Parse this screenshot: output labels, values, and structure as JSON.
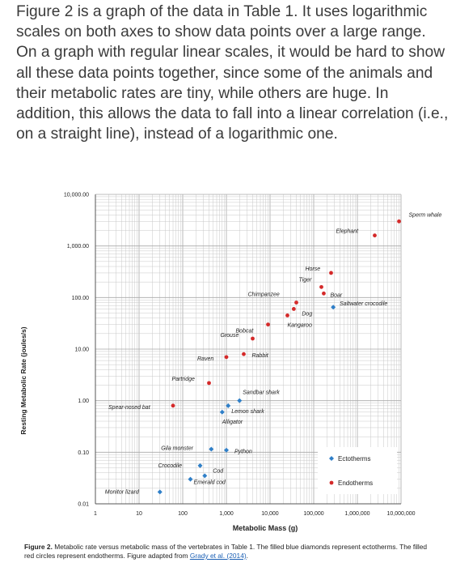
{
  "intro_text": "Figure 2 is a graph of the data in Table 1. It uses logarithmic scales on both axes to show data points over a large range. On a graph with regular linear scales, it would be hard to show all these data points together, since some of the animals and their metabolic rates are tiny, while others are huge. In addition, this allows the data to fall into a linear correlation (i.e., on a straight line), instead of a logarithmic one.",
  "caption": {
    "label": "Figure 2.",
    "text": " Metabolic rate versus metabolic mass of the vertebrates in Table 1. The filled blue diamonds represent ectotherms. The filled red circles represent endotherms. Figure adapted from ",
    "link": "Grady et al. (2014)",
    "end": "."
  },
  "colors": {
    "ectotherm": "#2f7fc8",
    "endotherm": "#d42a2a",
    "grid": "#c8c8c8"
  },
  "chart_data": {
    "type": "scatter",
    "xlabel": "Metabolic Mass (g)",
    "ylabel": "Resting Metabolic Rate (joules/s)",
    "x_scale": "log",
    "y_scale": "log",
    "xlim": [
      1,
      10000000
    ],
    "ylim": [
      0.01,
      10000
    ],
    "x_ticks": [
      "1",
      "10",
      "100",
      "1,000",
      "10,000",
      "100,000",
      "1,000,000",
      "10,000,000"
    ],
    "y_ticks": [
      "0.01",
      "0.10",
      "1.00",
      "10.00",
      "100.00",
      "1,000.00",
      "10,000.00"
    ],
    "grid": true,
    "legend_position": "bottom-right",
    "series": [
      {
        "name": "Ectotherms",
        "marker": "diamond",
        "points": [
          {
            "label": "Saltwater crocodile",
            "x": 280000,
            "y": 65
          },
          {
            "label": "Python",
            "x": 1000,
            "y": 0.11
          },
          {
            "label": "Gila monster",
            "x": 450,
            "y": 0.115
          },
          {
            "label": "Crocodile",
            "x": 250,
            "y": 0.055
          },
          {
            "label": "Cod",
            "x": 320,
            "y": 0.035
          },
          {
            "label": "Emerald cod",
            "x": 150,
            "y": 0.03
          },
          {
            "label": "Monitor lizard",
            "x": 30,
            "y": 0.017
          },
          {
            "label": "Alligator",
            "x": 800,
            "y": 0.6
          },
          {
            "label": "Lemon shark",
            "x": 1100,
            "y": 0.8
          },
          {
            "label": "Sandbar shark",
            "x": 2000,
            "y": 1.0
          }
        ]
      },
      {
        "name": "Endotherms",
        "marker": "circle",
        "points": [
          {
            "label": "Sperm whale",
            "x": 9000000,
            "y": 3000
          },
          {
            "label": "Elephant",
            "x": 2500000,
            "y": 1600
          },
          {
            "label": "Horse",
            "x": 250000,
            "y": 300
          },
          {
            "label": "Tiger",
            "x": 150000,
            "y": 160
          },
          {
            "label": "Boar",
            "x": 170000,
            "y": 120
          },
          {
            "label": "Chimpanzee",
            "x": 40000,
            "y": 80
          },
          {
            "label": "Dog",
            "x": 35000,
            "y": 60
          },
          {
            "label": "Kangaroo",
            "x": 25000,
            "y": 45
          },
          {
            "label": "Bobcat",
            "x": 9000,
            "y": 30
          },
          {
            "label": "Grouse",
            "x": 4000,
            "y": 16
          },
          {
            "label": "Rabbit",
            "x": 2500,
            "y": 8
          },
          {
            "label": "Raven",
            "x": 1000,
            "y": 7
          },
          {
            "label": "Partridge",
            "x": 400,
            "y": 2.2
          },
          {
            "label": "Spear-nosed bat",
            "x": 60,
            "y": 0.8
          }
        ]
      }
    ],
    "labels": [
      {
        "text": "Sperm whale",
        "dx": 12,
        "dy": -6
      },
      {
        "text": "Elephant",
        "dx": -48,
        "dy": -3
      },
      {
        "text": "Horse",
        "dx": -32,
        "dy": -3
      },
      {
        "text": "Tiger",
        "dx": -28,
        "dy": -7
      },
      {
        "text": "Boar",
        "dx": 8,
        "dy": 4
      },
      {
        "text": "Chimpanzee",
        "dx": -60,
        "dy": -8
      },
      {
        "text": "Dog",
        "dx": 10,
        "dy": 8
      },
      {
        "text": "Kangaroo",
        "dx": 0,
        "dy": 14
      },
      {
        "text": "Bobcat",
        "dx": -40,
        "dy": 10
      },
      {
        "text": "Grouse",
        "dx": -40,
        "dy": -2
      },
      {
        "text": "Rabbit",
        "dx": 10,
        "dy": 4
      },
      {
        "text": "Raven",
        "dx": -36,
        "dy": 4
      },
      {
        "text": "Partridge",
        "dx": -46,
        "dy": -3
      },
      {
        "text": "Spear-nosed bat",
        "dx": -80,
        "dy": 4
      },
      {
        "text": "Saltwater crocodile",
        "dx": 8,
        "dy": -2
      },
      {
        "text": "Python",
        "dx": 10,
        "dy": 4
      },
      {
        "text": "Gila monster",
        "dx": -62,
        "dy": 1
      },
      {
        "text": "Crocodile",
        "dx": -52,
        "dy": 2
      },
      {
        "text": "Cod",
        "dx": 10,
        "dy": -4
      },
      {
        "text": "Emerald cod",
        "dx": 4,
        "dy": 6
      },
      {
        "text": "Monitor lizard",
        "dx": -68,
        "dy": 2
      },
      {
        "text": "Alligator",
        "dx": 0,
        "dy": 14
      },
      {
        "text": "Lemon shark",
        "dx": 4,
        "dy": 9
      },
      {
        "text": "Sandbar shark",
        "dx": 4,
        "dy": -8
      }
    ]
  }
}
